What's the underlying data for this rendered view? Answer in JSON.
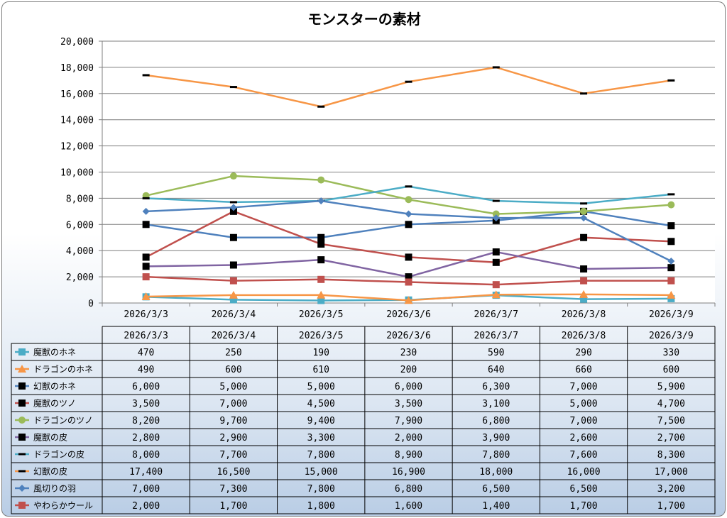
{
  "chart_data": {
    "type": "line",
    "title": "モンスターの素材",
    "categories": [
      "2026/3/3",
      "2026/3/4",
      "2026/3/5",
      "2026/3/6",
      "2026/3/7",
      "2026/3/8",
      "2026/3/9"
    ],
    "ylim": [
      0,
      20000
    ],
    "y_ticks": [
      "0",
      "2,000",
      "4,000",
      "6,000",
      "8,000",
      "10,000",
      "12,000",
      "14,000",
      "16,000",
      "18,000",
      "20,000"
    ],
    "grid": true,
    "legend": "data-table",
    "series": [
      {
        "name": "魔獣のホネ",
        "color": "#4bacc6",
        "marker": "square",
        "values": [
          470,
          250,
          190,
          230,
          590,
          290,
          330
        ],
        "labels": [
          "470",
          "250",
          "190",
          "230",
          "590",
          "290",
          "330"
        ]
      },
      {
        "name": "ドラゴンのホネ",
        "color": "#f79646",
        "marker": "triangle",
        "values": [
          490,
          600,
          610,
          200,
          640,
          660,
          600
        ],
        "labels": [
          "490",
          "600",
          "610",
          "200",
          "640",
          "660",
          "600"
        ]
      },
      {
        "name": "幻獣のホネ",
        "color": "#4f81bd",
        "marker": "square-black",
        "values": [
          6000,
          5000,
          5000,
          6000,
          6300,
          7000,
          5900
        ],
        "labels": [
          "6,000",
          "5,000",
          "5,000",
          "6,000",
          "6,300",
          "7,000",
          "5,900"
        ]
      },
      {
        "name": "魔獣のツノ",
        "color": "#c0504d",
        "marker": "square-black",
        "values": [
          3500,
          7000,
          4500,
          3500,
          3100,
          5000,
          4700
        ],
        "labels": [
          "3,500",
          "7,000",
          "4,500",
          "3,500",
          "3,100",
          "5,000",
          "4,700"
        ]
      },
      {
        "name": "ドラゴンのツノ",
        "color": "#9bbb59",
        "marker": "circle",
        "values": [
          8200,
          9700,
          9400,
          7900,
          6800,
          7000,
          7500
        ],
        "labels": [
          "8,200",
          "9,700",
          "9,400",
          "7,900",
          "6,800",
          "7,000",
          "7,500"
        ]
      },
      {
        "name": "魔獣の皮",
        "color": "#8064a2",
        "marker": "square-black",
        "values": [
          2800,
          2900,
          3300,
          2000,
          3900,
          2600,
          2700
        ],
        "labels": [
          "2,800",
          "2,900",
          "3,300",
          "2,000",
          "3,900",
          "2,600",
          "2,700"
        ]
      },
      {
        "name": "ドラゴンの皮",
        "color": "#4bacc6",
        "marker": "dash",
        "values": [
          8000,
          7700,
          7800,
          8900,
          7800,
          7600,
          8300
        ],
        "labels": [
          "8,000",
          "7,700",
          "7,800",
          "8,900",
          "7,800",
          "7,600",
          "8,300"
        ]
      },
      {
        "name": "幻獣の皮",
        "color": "#f79646",
        "marker": "dash",
        "values": [
          17400,
          16500,
          15000,
          16900,
          18000,
          16000,
          17000
        ],
        "labels": [
          "17,400",
          "16,500",
          "15,000",
          "16,900",
          "18,000",
          "16,000",
          "17,000"
        ]
      },
      {
        "name": "風切りの羽",
        "color": "#4f81bd",
        "marker": "diamond",
        "values": [
          7000,
          7300,
          7800,
          6800,
          6500,
          6500,
          3200
        ],
        "labels": [
          "7,000",
          "7,300",
          "7,800",
          "6,800",
          "6,500",
          "6,500",
          "3,200"
        ]
      },
      {
        "name": "やわらかウール",
        "color": "#c0504d",
        "marker": "square",
        "values": [
          2000,
          1700,
          1800,
          1600,
          1400,
          1700,
          1700
        ],
        "labels": [
          "2,000",
          "1,700",
          "1,800",
          "1,600",
          "1,400",
          "1,700",
          "1,700"
        ]
      }
    ]
  }
}
